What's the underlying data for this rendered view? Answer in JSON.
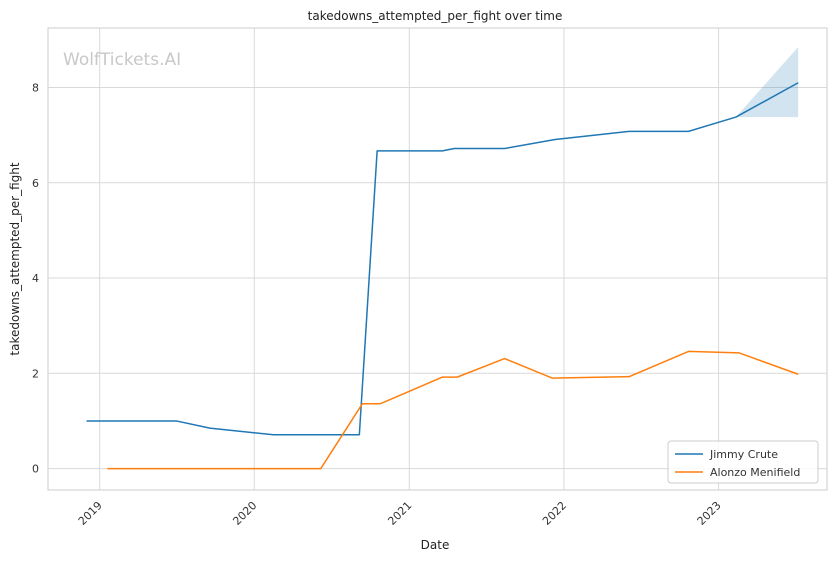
{
  "chart_data": {
    "type": "line",
    "title": "takedowns_attempted_per_fight over time",
    "xlabel": "Date",
    "ylabel": "takedowns_attempted_per_fight",
    "watermark": "WolfTickets.AI",
    "x_ticks": [
      "2019",
      "2020",
      "2021",
      "2022",
      "2023"
    ],
    "y_ticks": [
      "0",
      "2",
      "4",
      "6",
      "8"
    ],
    "xlim": [
      "2018-09-01",
      "2023-09-14"
    ],
    "ylim": [
      -0.45,
      9.25
    ],
    "grid": true,
    "legend_position": "lower-right",
    "series": [
      {
        "name": "Jimmy Crute",
        "color": "#1f77b4",
        "points": [
          [
            "2018-12-01",
            1.0
          ],
          [
            "2019-07-01",
            1.0
          ],
          [
            "2019-09-18",
            0.85
          ],
          [
            "2020-02-15",
            0.71
          ],
          [
            "2020-09-05",
            0.71
          ],
          [
            "2020-10-17",
            6.67
          ],
          [
            "2021-03-20",
            6.67
          ],
          [
            "2021-04-17",
            6.72
          ],
          [
            "2021-08-14",
            6.72
          ],
          [
            "2021-12-11",
            6.91
          ],
          [
            "2022-06-04",
            7.08
          ],
          [
            "2022-10-22",
            7.08
          ],
          [
            "2023-02-11",
            7.38
          ],
          [
            "2023-07-08",
            8.1
          ]
        ],
        "band": {
          "x": [
            "2023-02-11",
            "2023-07-08"
          ],
          "lower": [
            7.38,
            7.38
          ],
          "upper": [
            7.38,
            8.85
          ]
        }
      },
      {
        "name": "Alonzo Menifield",
        "color": "#ff7f0e",
        "points": [
          [
            "2019-01-19",
            0.0
          ],
          [
            "2020-06-06",
            0.0
          ],
          [
            "2020-09-12",
            1.36
          ],
          [
            "2020-10-24",
            1.36
          ],
          [
            "2021-03-20",
            1.92
          ],
          [
            "2021-04-24",
            1.92
          ],
          [
            "2021-08-14",
            2.31
          ],
          [
            "2021-12-04",
            1.9
          ],
          [
            "2022-06-04",
            1.93
          ],
          [
            "2022-10-22",
            2.46
          ],
          [
            "2023-02-18",
            2.43
          ],
          [
            "2023-07-08",
            1.98
          ]
        ]
      }
    ]
  }
}
